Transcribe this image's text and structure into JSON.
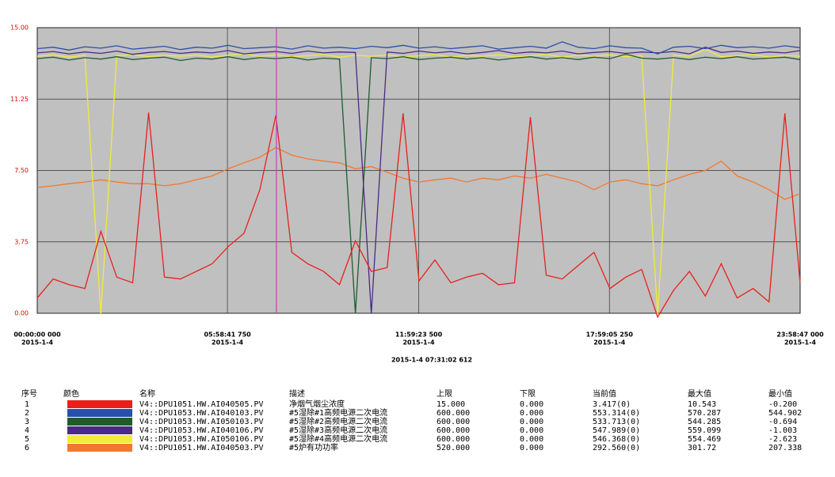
{
  "chart_data": {
    "type": "line",
    "ylim": [
      0,
      15
    ],
    "yticks": [
      {
        "value": 0,
        "label": "0.00"
      },
      {
        "value": 3.75,
        "label": "3.75"
      },
      {
        "value": 7.5,
        "label": "7.50"
      },
      {
        "value": 11.25,
        "label": "11.25"
      },
      {
        "value": 15,
        "label": "15.00"
      }
    ],
    "xlim": [
      0,
      86327
    ],
    "xticks": [
      {
        "value": 0,
        "label": "00:00:00 000",
        "date": "2015-1-4"
      },
      {
        "value": 21521.75,
        "label": "05:58:41 750",
        "date": "2015-1-4"
      },
      {
        "value": 43163.5,
        "label": "11:59:23 500",
        "date": "2015-1-4"
      },
      {
        "value": 64745.25,
        "label": "17:59:05 250",
        "date": "2015-1-4"
      },
      {
        "value": 86327,
        "label": "23:58:47 000",
        "date": "2015-1-4"
      }
    ],
    "grid": true,
    "cursor": {
      "x": 27062.612,
      "label": "2015-1-4 07:31:02 612",
      "color": "#c040c0"
    },
    "x": [
      0,
      1800,
      3600,
      5400,
      7200,
      9000,
      10800,
      12600,
      14400,
      16200,
      18000,
      19800,
      21600,
      23400,
      25200,
      27000,
      28800,
      30600,
      32400,
      34200,
      36000,
      37800,
      39600,
      41400,
      43200,
      45000,
      46800,
      48600,
      50400,
      52200,
      54000,
      55800,
      57600,
      59400,
      61200,
      63000,
      64800,
      66600,
      68400,
      70200,
      72000,
      73800,
      75600,
      77400,
      79200,
      81000,
      82800,
      84600,
      86327
    ],
    "table_headers": [
      "序号",
      "颜色",
      "名称",
      "描述",
      "上限",
      "下限",
      "当前值",
      "最大值",
      "最小值"
    ],
    "series": [
      {
        "index": 1,
        "name": "V4::DPU1051.HW.AI040505.PV",
        "description": "净烟气烟尘浓度",
        "color": "#e8201c",
        "upper": {
          "value": 15,
          "label": "15.000"
        },
        "lower": {
          "value": 0,
          "label": "0.000"
        },
        "current": "3.417(0)",
        "max": 10.543,
        "min": {
          "value": -0.2,
          "label": "-0.200"
        },
        "values": [
          0.8,
          1.8,
          1.5,
          1.3,
          4.3,
          1.9,
          1.6,
          10.543,
          1.9,
          1.8,
          2.2,
          2.6,
          3.5,
          4.2,
          6.5,
          10.4,
          3.2,
          2.6,
          2.2,
          1.5,
          3.8,
          2.2,
          2.4,
          10.5,
          1.7,
          2.8,
          1.6,
          1.9,
          2.1,
          1.5,
          1.6,
          10.3,
          2.0,
          1.8,
          2.5,
          3.2,
          1.3,
          1.9,
          2.3,
          -0.2,
          1.2,
          2.2,
          0.9,
          2.6,
          0.8,
          1.3,
          0.6,
          10.5,
          1.6
        ]
      },
      {
        "index": 2,
        "name": "V4::DPU1053.HW.AI040103.PV",
        "description": "#5湿除#1高频电源二次电流",
        "color": "#2a4fa8",
        "upper": {
          "value": 600,
          "label": "600.000"
        },
        "lower": {
          "value": 0,
          "label": "0.000"
        },
        "current": "553.314(0)",
        "max": 570.287,
        "min": 544.902,
        "values": [
          556,
          559,
          553,
          560,
          557,
          562,
          555,
          558,
          561,
          554,
          559,
          557,
          563,
          556,
          558,
          560,
          555,
          562,
          557,
          559,
          556,
          561,
          558,
          563,
          557,
          560,
          556,
          559,
          562,
          555,
          558,
          561,
          557,
          570.287,
          559,
          556,
          562,
          558,
          557,
          544.902,
          559,
          561,
          556,
          563,
          558,
          560,
          557,
          562,
          558
        ]
      },
      {
        "index": 3,
        "name": "V4::DPU1053.HW.AI050103.PV",
        "description": "#5湿除#2高频电源二次电流",
        "color": "#1f5c2c",
        "upper": {
          "value": 600,
          "label": "600.000"
        },
        "lower": {
          "value": 0,
          "label": "0.000"
        },
        "current": "533.713(0)",
        "max": 544.285,
        "min": {
          "value": -0.694,
          "label": "-0.694"
        },
        "values": [
          535,
          538,
          532,
          537,
          534,
          539,
          533,
          536,
          538,
          531,
          536,
          534,
          539,
          533,
          537,
          535,
          538,
          532,
          536,
          534,
          -0.694,
          537,
          535,
          539,
          533,
          536,
          538,
          534,
          537,
          532,
          536,
          539,
          534,
          537,
          533,
          538,
          535,
          544.285,
          536,
          534,
          537,
          533,
          538,
          535,
          539,
          534,
          536,
          538,
          533
        ]
      },
      {
        "index": 4,
        "name": "V4::DPU1053.HW.AI040106.PV",
        "description": "#5湿除#3高频电源二次电流",
        "color": "#4a2a86",
        "upper": {
          "value": 600,
          "label": "600.000"
        },
        "lower": {
          "value": 0,
          "label": "0.000"
        },
        "current": "547.989(0)",
        "max": 559.099,
        "min": {
          "value": -1.003,
          "label": "-1.003"
        },
        "values": [
          547,
          550,
          545,
          549,
          546,
          551,
          544,
          548,
          550,
          546,
          549,
          547,
          552,
          545,
          548,
          550,
          546,
          551,
          547,
          549,
          548,
          -1.003,
          549,
          546,
          551,
          547,
          550,
          545,
          548,
          552,
          546,
          549,
          547,
          551,
          545,
          548,
          550,
          546,
          549,
          547,
          550,
          545,
          559.099,
          548,
          551,
          546,
          549,
          547,
          552
        ]
      },
      {
        "index": 5,
        "name": "V4::DPU1053.HW.AI050106.PV",
        "description": "#5湿除#4高频电源二次电流",
        "color": "#f0ec3a",
        "upper": {
          "value": 600,
          "label": "600.000"
        },
        "lower": {
          "value": 0,
          "label": "0.000"
        },
        "current": "546.368(0)",
        "max": 554.469,
        "min": -2.623,
        "values": [
          540,
          543,
          538,
          542,
          -2.5,
          541,
          544,
          539,
          542,
          540,
          543,
          538,
          542,
          545,
          540,
          543,
          539,
          541,
          544,
          538,
          542,
          540,
          543,
          539,
          541,
          544,
          538,
          542,
          540,
          543,
          539,
          541,
          544,
          538,
          542,
          540,
          543,
          539,
          541,
          -2.623,
          542,
          540,
          554.469,
          539,
          541,
          544,
          538,
          542,
          540
        ]
      },
      {
        "index": 6,
        "name": "V4::DPU1051.HW.AI040503.PV",
        "description": "#5炉有功功率",
        "color": "#f07830",
        "upper": {
          "value": 520,
          "label": "520.000"
        },
        "lower": {
          "value": 0,
          "label": "0.000"
        },
        "current": "292.560(0)",
        "max": 301.72,
        "min": 207.338,
        "values": [
          229,
          232,
          236,
          239,
          243,
          239,
          236,
          236,
          232,
          236,
          243,
          250,
          263,
          274,
          284,
          301.72,
          288,
          281,
          277,
          274,
          263,
          267,
          257,
          246,
          239,
          243,
          246,
          239,
          246,
          243,
          250,
          246,
          253,
          246,
          239,
          225,
          239,
          243,
          236,
          232,
          243,
          253,
          260,
          277,
          250,
          239,
          225,
          207.338,
          218
        ]
      }
    ]
  }
}
